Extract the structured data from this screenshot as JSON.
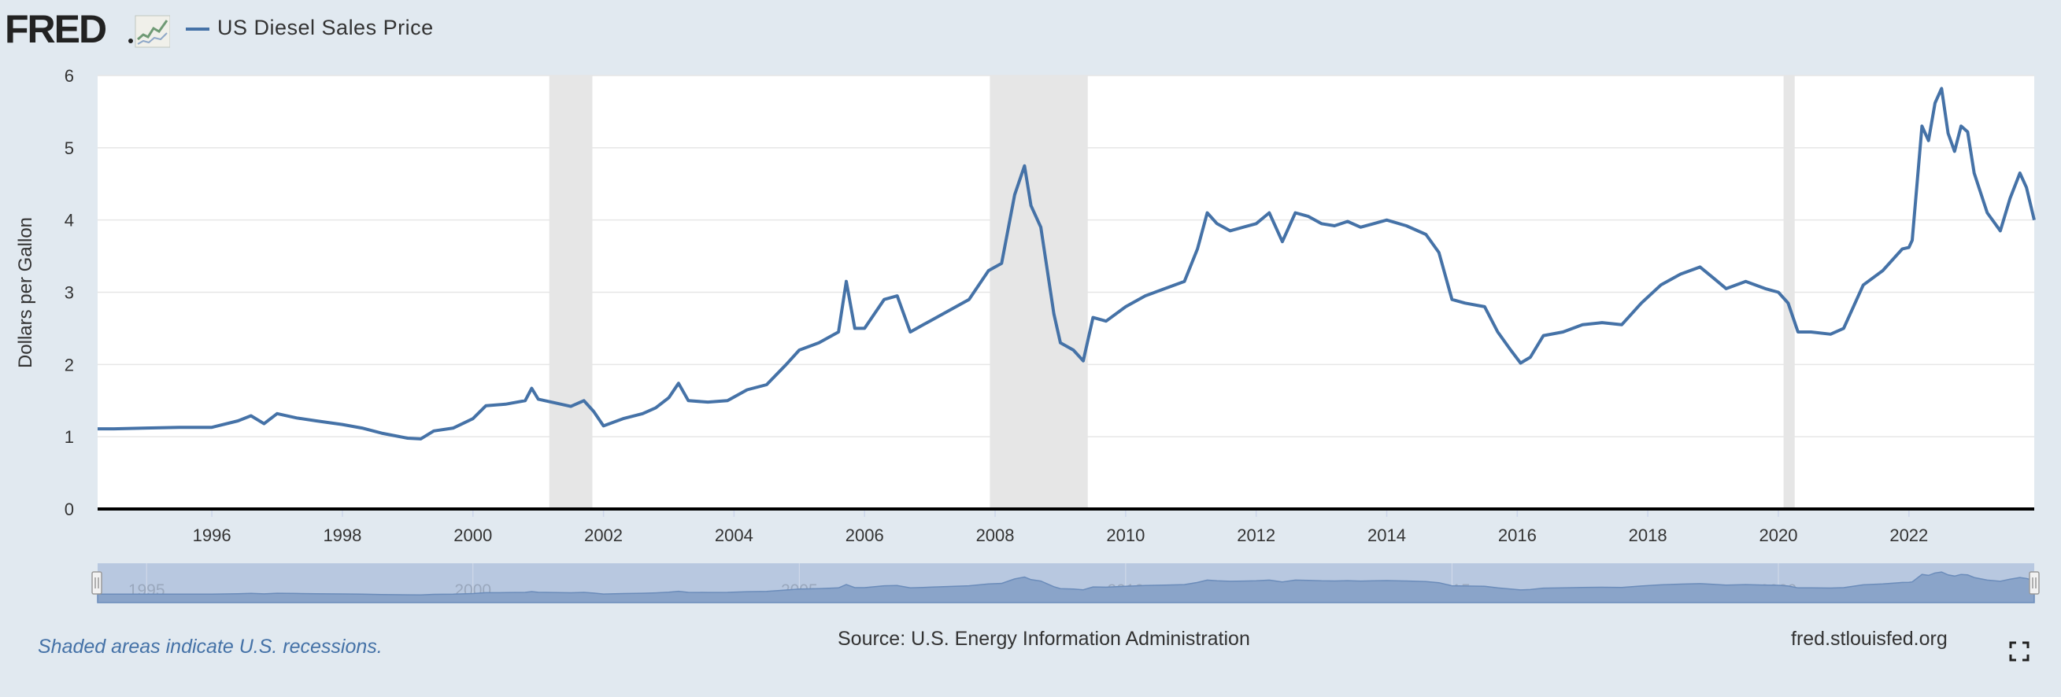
{
  "header": {
    "logo_text": "FRED",
    "legend_label": "US Diesel Sales Price"
  },
  "footer": {
    "recession_note": "Shaded areas indicate U.S. recessions.",
    "source": "Source: U.S. Energy Information Administration",
    "site": "fred.stlouisfed.org"
  },
  "colors": {
    "series": "#4572a7",
    "background": "#e1e9f0",
    "recession": "#e6e6e6",
    "navigator_band": "#b8c8e0",
    "navigator_fill": "#8aa4c9"
  },
  "chart_data": {
    "type": "line",
    "title": "US Diesel Sales Price",
    "ylabel": "Dollars per Gallon",
    "xlabel": "",
    "ylim": [
      0,
      6
    ],
    "xlim": [
      1994.25,
      2023.92
    ],
    "y_ticks": [
      "0",
      "1",
      "2",
      "3",
      "4",
      "5",
      "6"
    ],
    "x_ticks": [
      "1996",
      "1998",
      "2000",
      "2002",
      "2004",
      "2006",
      "2008",
      "2010",
      "2012",
      "2014",
      "2016",
      "2018",
      "2020",
      "2022"
    ],
    "navigator_ticks": [
      "1995",
      "2000",
      "2005",
      "2010",
      "2015",
      "2020"
    ],
    "recessions": [
      [
        2001.17,
        2001.83
      ],
      [
        2007.92,
        2009.42
      ],
      [
        2020.08,
        2020.25
      ]
    ],
    "series": [
      {
        "name": "US Diesel Sales Price",
        "x": [
          1994.25,
          1994.5,
          1995.0,
          1995.5,
          1996.0,
          1996.4,
          1996.6,
          1996.8,
          1997.0,
          1997.3,
          1997.6,
          1998.0,
          1998.3,
          1998.6,
          1999.0,
          1999.2,
          1999.4,
          1999.7,
          2000.0,
          2000.2,
          2000.5,
          2000.8,
          2000.9,
          2001.0,
          2001.2,
          2001.5,
          2001.7,
          2001.85,
          2002.0,
          2002.3,
          2002.6,
          2002.8,
          2003.0,
          2003.15,
          2003.3,
          2003.6,
          2003.9,
          2004.2,
          2004.5,
          2004.8,
          2005.0,
          2005.3,
          2005.6,
          2005.72,
          2005.85,
          2006.0,
          2006.3,
          2006.5,
          2006.7,
          2006.9,
          2007.0,
          2007.3,
          2007.6,
          2007.9,
          2008.1,
          2008.3,
          2008.45,
          2008.55,
          2008.7,
          2008.9,
          2009.0,
          2009.2,
          2009.35,
          2009.5,
          2009.7,
          2010.0,
          2010.3,
          2010.6,
          2010.9,
          2011.1,
          2011.25,
          2011.4,
          2011.6,
          2011.8,
          2012.0,
          2012.2,
          2012.4,
          2012.6,
          2012.8,
          2013.0,
          2013.2,
          2013.4,
          2013.6,
          2013.8,
          2014.0,
          2014.3,
          2014.6,
          2014.8,
          2015.0,
          2015.2,
          2015.5,
          2015.7,
          2015.9,
          2016.05,
          2016.2,
          2016.4,
          2016.7,
          2017.0,
          2017.3,
          2017.6,
          2017.9,
          2018.2,
          2018.5,
          2018.8,
          2019.0,
          2019.2,
          2019.5,
          2019.8,
          2020.0,
          2020.15,
          2020.3,
          2020.5,
          2020.8,
          2021.0,
          2021.3,
          2021.6,
          2021.9,
          2022.0,
          2022.05,
          2022.2,
          2022.3,
          2022.4,
          2022.5,
          2022.6,
          2022.7,
          2022.8,
          2022.9,
          2023.0,
          2023.2,
          2023.4,
          2023.55,
          2023.7,
          2023.8,
          2023.92
        ],
        "values": [
          1.11,
          1.11,
          1.12,
          1.13,
          1.13,
          1.22,
          1.29,
          1.18,
          1.32,
          1.26,
          1.22,
          1.17,
          1.12,
          1.05,
          0.98,
          0.97,
          1.08,
          1.12,
          1.25,
          1.43,
          1.45,
          1.5,
          1.67,
          1.52,
          1.48,
          1.42,
          1.5,
          1.35,
          1.15,
          1.25,
          1.32,
          1.4,
          1.54,
          1.74,
          1.5,
          1.48,
          1.5,
          1.65,
          1.72,
          2.0,
          2.2,
          2.3,
          2.45,
          3.15,
          2.5,
          2.5,
          2.9,
          2.95,
          2.45,
          2.55,
          2.6,
          2.75,
          2.9,
          3.3,
          3.4,
          4.35,
          4.75,
          4.2,
          3.9,
          2.7,
          2.3,
          2.2,
          2.05,
          2.65,
          2.6,
          2.8,
          2.95,
          3.05,
          3.15,
          3.6,
          4.1,
          3.95,
          3.85,
          3.9,
          3.95,
          4.1,
          3.7,
          4.1,
          4.05,
          3.95,
          3.92,
          3.98,
          3.9,
          3.95,
          4.0,
          3.92,
          3.8,
          3.55,
          2.9,
          2.85,
          2.8,
          2.45,
          2.2,
          2.02,
          2.1,
          2.4,
          2.45,
          2.55,
          2.58,
          2.55,
          2.85,
          3.1,
          3.25,
          3.35,
          3.2,
          3.05,
          3.15,
          3.05,
          3.0,
          2.85,
          2.45,
          2.45,
          2.42,
          2.5,
          3.1,
          3.3,
          3.6,
          3.62,
          3.72,
          5.3,
          5.1,
          5.62,
          5.82,
          5.2,
          4.95,
          5.3,
          5.22,
          4.65,
          4.1,
          3.85,
          4.3,
          4.65,
          4.45,
          4.0
        ]
      }
    ]
  }
}
